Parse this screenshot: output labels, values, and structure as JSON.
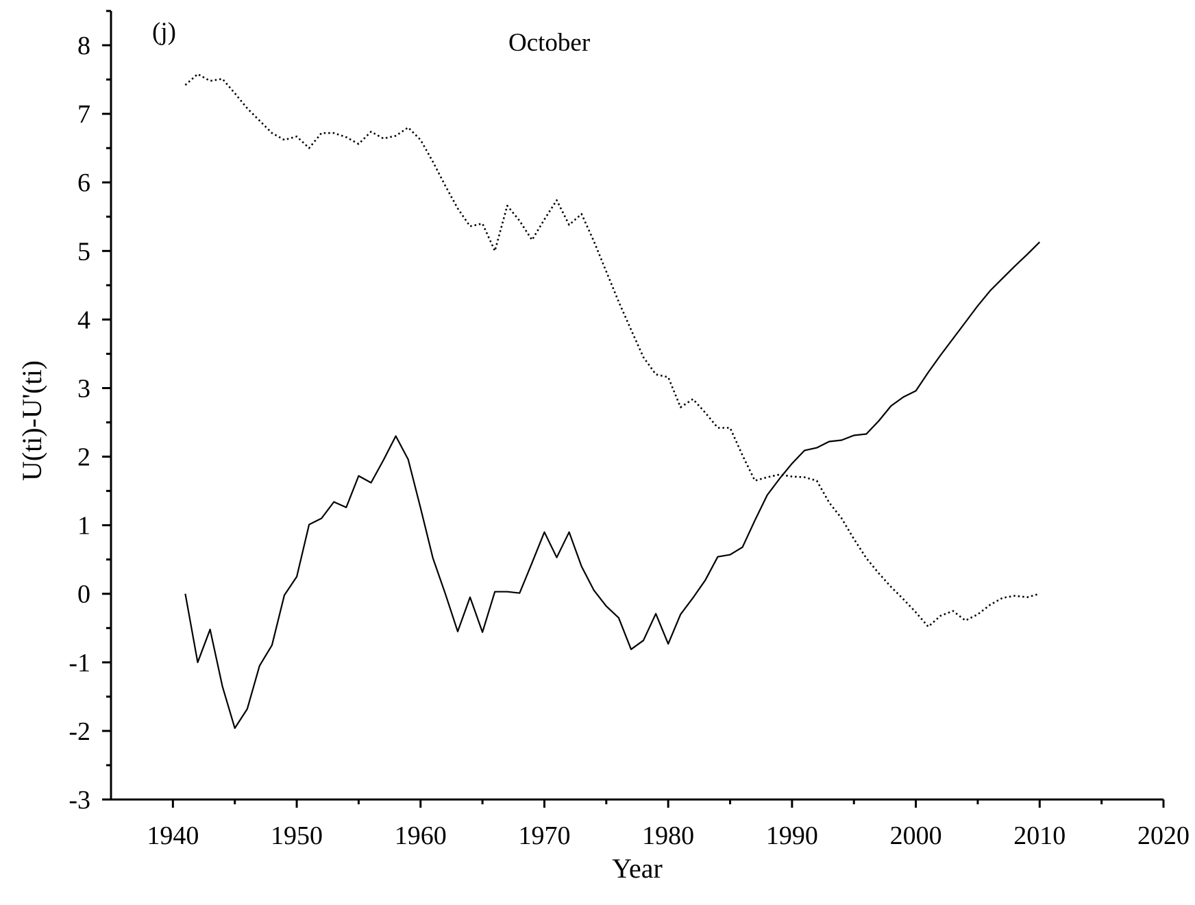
{
  "chart_data": {
    "type": "line",
    "title": "October",
    "panel_label": "(j)",
    "xlabel": "Year",
    "ylabel": "U(ti)-U'(ti)",
    "xlim": [
      1935,
      2020
    ],
    "ylim": [
      -3,
      8.5
    ],
    "xticks": [
      1940,
      1950,
      1960,
      1970,
      1980,
      1990,
      2000,
      2010,
      2020
    ],
    "yticks": [
      -3,
      -2,
      -1,
      0,
      1,
      2,
      3,
      4,
      5,
      6,
      7,
      8
    ],
    "grid": false,
    "legend": "none",
    "series": [
      {
        "style": "solid",
        "color": "#000000",
        "x": [
          1941,
          1942,
          1943,
          1944,
          1945,
          1946,
          1947,
          1948,
          1949,
          1950,
          1951,
          1952,
          1953,
          1954,
          1955,
          1956,
          1957,
          1958,
          1959,
          1960,
          1961,
          1962,
          1963,
          1964,
          1965,
          1966,
          1967,
          1968,
          1969,
          1970,
          1971,
          1972,
          1973,
          1974,
          1975,
          1976,
          1977,
          1978,
          1979,
          1980,
          1981,
          1982,
          1983,
          1984,
          1985,
          1986,
          1987,
          1988,
          1989,
          1990,
          1991,
          1992,
          1993,
          1994,
          1995,
          1996,
          1997,
          1998,
          1999,
          2000,
          2001,
          2002,
          2003,
          2004,
          2005,
          2006,
          2007,
          2008,
          2009,
          2010
        ],
        "values": [
          0,
          -1.0,
          -0.52,
          -1.35,
          -1.96,
          -1.68,
          -1.05,
          -0.75,
          -0.02,
          0.25,
          1.01,
          1.1,
          1.34,
          1.26,
          1.72,
          1.62,
          1.95,
          2.3,
          1.96,
          1.25,
          0.52,
          0.0,
          -0.55,
          -0.05,
          -0.56,
          0.03,
          0.03,
          0.01,
          0.45,
          0.9,
          0.53,
          0.9,
          0.4,
          0.05,
          -0.18,
          -0.35,
          -0.81,
          -0.68,
          -0.29,
          -0.73,
          -0.3,
          -0.06,
          0.2,
          0.54,
          0.57,
          0.68,
          1.07,
          1.44,
          1.68,
          1.9,
          2.09,
          2.13,
          2.22,
          2.24,
          2.31,
          2.33,
          2.52,
          2.74,
          2.87,
          2.96,
          3.23,
          3.48,
          3.72,
          3.96,
          4.2,
          4.42,
          4.6,
          4.78,
          4.95,
          5.13
        ]
      },
      {
        "style": "dotted",
        "color": "#000000",
        "x": [
          1941,
          1942,
          1943,
          1944,
          1945,
          1946,
          1947,
          1948,
          1949,
          1950,
          1951,
          1952,
          1953,
          1954,
          1955,
          1956,
          1957,
          1958,
          1959,
          1960,
          1961,
          1962,
          1963,
          1964,
          1965,
          1966,
          1967,
          1968,
          1969,
          1970,
          1971,
          1972,
          1973,
          1974,
          1975,
          1976,
          1977,
          1978,
          1979,
          1980,
          1981,
          1982,
          1983,
          1984,
          1985,
          1986,
          1987,
          1988,
          1989,
          1990,
          1991,
          1992,
          1993,
          1994,
          1995,
          1996,
          1997,
          1998,
          1999,
          2000,
          2001,
          2002,
          2003,
          2004,
          2005,
          2006,
          2007,
          2008,
          2009,
          2010
        ],
        "values": [
          7.42,
          7.58,
          7.48,
          7.51,
          7.3,
          7.08,
          6.9,
          6.72,
          6.62,
          6.67,
          6.5,
          6.72,
          6.72,
          6.66,
          6.56,
          6.74,
          6.64,
          6.68,
          6.8,
          6.62,
          6.3,
          5.95,
          5.62,
          5.36,
          5.4,
          5.0,
          5.66,
          5.44,
          5.16,
          5.46,
          5.74,
          5.38,
          5.54,
          5.14,
          4.7,
          4.26,
          3.85,
          3.45,
          3.2,
          3.16,
          2.72,
          2.84,
          2.64,
          2.42,
          2.42,
          2.02,
          1.65,
          1.7,
          1.74,
          1.71,
          1.7,
          1.65,
          1.33,
          1.1,
          0.8,
          0.52,
          0.3,
          0.1,
          -0.08,
          -0.27,
          -0.48,
          -0.32,
          -0.25,
          -0.39,
          -0.3,
          -0.16,
          -0.06,
          -0.03,
          -0.05,
          0
        ]
      }
    ]
  }
}
